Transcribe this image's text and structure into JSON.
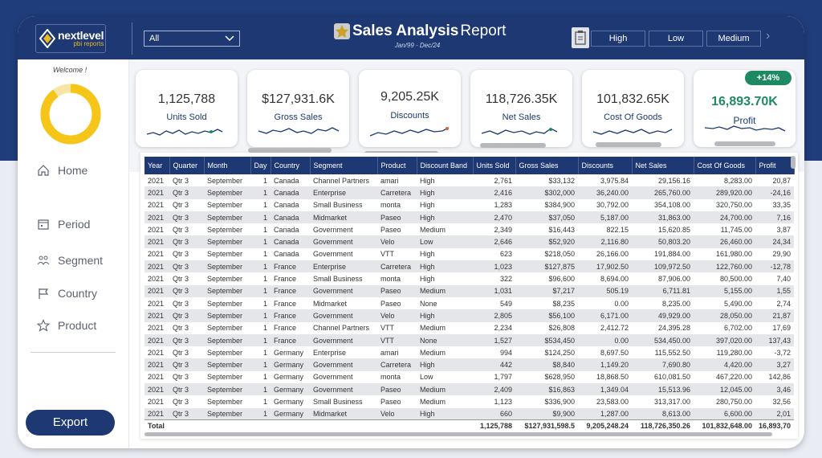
{
  "header": {
    "logo": {
      "name": "nextlevel",
      "sub": "pbi reports"
    },
    "selector": {
      "value": "All"
    },
    "title_bold": "Sales Analysis",
    "title_rest": " Report",
    "subtitle": "Jan/99 - Dec/24",
    "pills": [
      "High",
      "Low",
      "Medium"
    ]
  },
  "sidebar": {
    "welcome": "Welcome !",
    "donut_fill_fraction": 0.9,
    "nav": [
      {
        "label": "Home",
        "icon": "home-icon"
      },
      {
        "label": "Period",
        "icon": "calendar-icon"
      },
      {
        "label": "Segment",
        "icon": "segment-icon"
      },
      {
        "label": "Country",
        "icon": "flag-icon"
      },
      {
        "label": "Product",
        "icon": "star-icon"
      }
    ],
    "export": "Export"
  },
  "cards": [
    {
      "value": "1,125,788",
      "label": "Units Sold"
    },
    {
      "value": "$127,931.6K",
      "label": "Gross Sales"
    },
    {
      "value": "9,205.25K",
      "label": "Discounts"
    },
    {
      "value": "118,726.35K",
      "label": "Net Sales"
    },
    {
      "value": "101,832.65K",
      "label": "Cost Of Goods"
    },
    {
      "value": "16,893.70K",
      "label": "Profit",
      "badge": "+14%"
    }
  ],
  "colors": {
    "navy": "#1d3872",
    "accent_green": "#1e8a64",
    "donut_yellow": "#f5c518",
    "sparkline": "#1d3872"
  },
  "table": {
    "columns": [
      "Year",
      "Quarter",
      "Month",
      "Day",
      "Country",
      "Segment",
      "Product",
      "Discount Band",
      "Units Sold",
      "Gross Sales",
      "Discounts",
      "Net Sales",
      "Cost Of Goods",
      "Profit"
    ],
    "rows": [
      [
        "2021",
        "Qtr 3",
        "September",
        "1",
        "Canada",
        "Channel Partners",
        "amari",
        "High",
        "2,761",
        "$33,132",
        "3,975.84",
        "29,156.16",
        "8,283.00",
        "20,87"
      ],
      [
        "2021",
        "Qtr 3",
        "September",
        "1",
        "Canada",
        "Enterprise",
        "Carretera",
        "High",
        "2,416",
        "$302,000",
        "36,240.00",
        "265,760.00",
        "289,920.00",
        "-24,16"
      ],
      [
        "2021",
        "Qtr 3",
        "September",
        "1",
        "Canada",
        "Small Business",
        "monta",
        "High",
        "1,283",
        "$384,900",
        "30,792.00",
        "354,108.00",
        "320,750.00",
        "33,35"
      ],
      [
        "2021",
        "Qtr 3",
        "September",
        "1",
        "Canada",
        "Midmarket",
        "Paseo",
        "High",
        "2,470",
        "$37,050",
        "5,187.00",
        "31,863.00",
        "24,700.00",
        "7,16"
      ],
      [
        "2021",
        "Qtr 3",
        "September",
        "1",
        "Canada",
        "Government",
        "Paseo",
        "Medium",
        "2,349",
        "$16,443",
        "822.15",
        "15,620.85",
        "11,745.00",
        "3,87"
      ],
      [
        "2021",
        "Qtr 3",
        "September",
        "1",
        "Canada",
        "Government",
        "Velo",
        "Low",
        "2,646",
        "$52,920",
        "2,116.80",
        "50,803.20",
        "26,460.00",
        "24,34"
      ],
      [
        "2021",
        "Qtr 3",
        "September",
        "1",
        "Canada",
        "Government",
        "VTT",
        "High",
        "623",
        "$218,050",
        "26,166.00",
        "191,884.00",
        "161,980.00",
        "29,90"
      ],
      [
        "2021",
        "Qtr 3",
        "September",
        "1",
        "France",
        "Enterprise",
        "Carretera",
        "High",
        "1,023",
        "$127,875",
        "17,902.50",
        "109,972.50",
        "122,760.00",
        "-12,78"
      ],
      [
        "2021",
        "Qtr 3",
        "September",
        "1",
        "France",
        "Small Business",
        "monta",
        "High",
        "322",
        "$96,600",
        "8,694.00",
        "87,906.00",
        "80,500.00",
        "7,40"
      ],
      [
        "2021",
        "Qtr 3",
        "September",
        "1",
        "France",
        "Government",
        "Paseo",
        "Medium",
        "1,031",
        "$7,217",
        "505.19",
        "6,711.81",
        "5,155.00",
        "1,55"
      ],
      [
        "2021",
        "Qtr 3",
        "September",
        "1",
        "France",
        "Midmarket",
        "Paseo",
        "None",
        "549",
        "$8,235",
        "0.00",
        "8,235.00",
        "5,490.00",
        "2,74"
      ],
      [
        "2021",
        "Qtr 3",
        "September",
        "1",
        "France",
        "Government",
        "Velo",
        "High",
        "2,805",
        "$56,100",
        "6,171.00",
        "49,929.00",
        "28,050.00",
        "21,87"
      ],
      [
        "2021",
        "Qtr 3",
        "September",
        "1",
        "France",
        "Channel Partners",
        "VTT",
        "Medium",
        "2,234",
        "$26,808",
        "2,412.72",
        "24,395.28",
        "6,702.00",
        "17,69"
      ],
      [
        "2021",
        "Qtr 3",
        "September",
        "1",
        "France",
        "Government",
        "VTT",
        "None",
        "1,527",
        "$534,450",
        "0.00",
        "534,450.00",
        "397,020.00",
        "137,43"
      ],
      [
        "2021",
        "Qtr 3",
        "September",
        "1",
        "Germany",
        "Enterprise",
        "amari",
        "Medium",
        "994",
        "$124,250",
        "8,697.50",
        "115,552.50",
        "119,280.00",
        "-3,72"
      ],
      [
        "2021",
        "Qtr 3",
        "September",
        "1",
        "Germany",
        "Government",
        "Carretera",
        "High",
        "442",
        "$8,840",
        "1,149.20",
        "7,690.80",
        "4,420.00",
        "3,27"
      ],
      [
        "2021",
        "Qtr 3",
        "September",
        "1",
        "Germany",
        "Government",
        "monta",
        "Low",
        "1,797",
        "$628,950",
        "18,868.50",
        "610,081.50",
        "467,220.00",
        "142,86"
      ],
      [
        "2021",
        "Qtr 3",
        "September",
        "1",
        "Germany",
        "Government",
        "Paseo",
        "Medium",
        "2,409",
        "$16,863",
        "1,349.04",
        "15,513.96",
        "12,045.00",
        "3,46"
      ],
      [
        "2021",
        "Qtr 3",
        "September",
        "1",
        "Germany",
        "Small Business",
        "Paseo",
        "Medium",
        "1,123",
        "$336,900",
        "23,583.00",
        "313,317.00",
        "280,750.00",
        "32,56"
      ],
      [
        "2021",
        "Qtr 3",
        "September",
        "1",
        "Germany",
        "Midmarket",
        "Velo",
        "High",
        "660",
        "$9,900",
        "1,287.00",
        "8,613.00",
        "6,600.00",
        "2,01"
      ]
    ],
    "total": [
      "Total",
      "",
      "",
      "",
      "",
      "",
      "",
      "",
      "1,125,788",
      "$127,931,598.5",
      "9,205,248.24",
      "118,726,350.26",
      "101,832,648.00",
      "16,893,70"
    ]
  }
}
